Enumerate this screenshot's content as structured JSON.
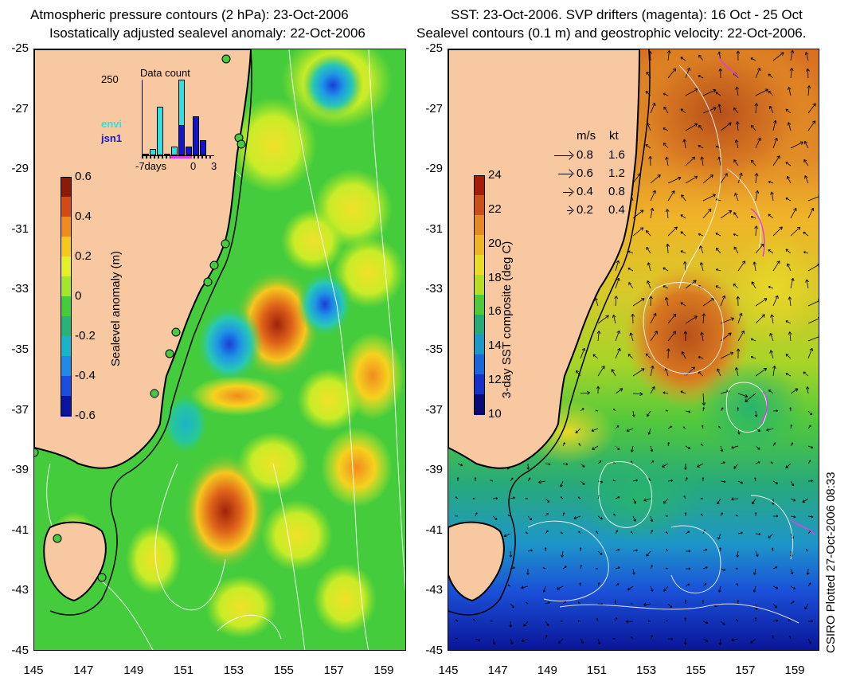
{
  "left_panel": {
    "title_line1": "Atmospheric pressure contours (2 hPa): 23-Oct-2006",
    "title_line2": "Isostatically adjusted sealevel anomaly: 22-Oct-2006",
    "colorbar": {
      "label": "Sealevel anomaly (m)",
      "ticks": [
        "0.6",
        "0.4",
        "0.2",
        "0",
        "-0.2",
        "-0.4",
        "-0.6"
      ],
      "colors": [
        "#8c1a08",
        "#d34a16",
        "#f08c1e",
        "#f5c81e",
        "#e6ee28",
        "#a6e628",
        "#44cc3c",
        "#28b478",
        "#1ab4c8",
        "#1e8ce6",
        "#1a4ee0",
        "#0a14a0"
      ]
    },
    "histogram": {
      "title": "Data count",
      "y_max_label": "250",
      "x_labels": [
        "-7days",
        "0",
        "3"
      ],
      "legend": [
        "envi",
        "jsn1"
      ],
      "legend_colors": [
        "#30e0e0",
        "#1414d0"
      ],
      "envi_counts": [
        5,
        20,
        160,
        5,
        30,
        250,
        10,
        5,
        0,
        0
      ],
      "jsn1_counts": [
        0,
        0,
        0,
        0,
        0,
        100,
        30,
        130,
        50,
        0
      ]
    }
  },
  "right_panel": {
    "title_line1": "SST: 23-Oct-2006. SVP drifters (magenta): 16 Oct - 25 Oct",
    "title_line2": "Sealevel contours (0.1 m) and geostrophic velocity: 22-Oct-2006.",
    "colorbar": {
      "label": "3-day SST composite (deg C)",
      "ticks": [
        "24",
        "22",
        "20",
        "18",
        "16",
        "14",
        "12",
        "10"
      ],
      "colors": [
        "#a01e0a",
        "#c8501a",
        "#e28a28",
        "#f0b428",
        "#e8dc28",
        "#b4dc28",
        "#50c83c",
        "#28aa78",
        "#1e96c8",
        "#1a64dc",
        "#1432c8",
        "#0a0a78"
      ]
    },
    "velocity_legend": {
      "header_ms": "m/s",
      "header_kt": "kt",
      "rows": [
        {
          "ms": "0.8",
          "kt": "1.6",
          "value": 0.8
        },
        {
          "ms": "0.6",
          "kt": "1.2",
          "value": 0.6
        },
        {
          "ms": "0.4",
          "kt": "0.8",
          "value": 0.4
        },
        {
          "ms": "0.2",
          "kt": "0.4",
          "value": 0.2
        }
      ]
    }
  },
  "axes": {
    "lat_ticks": [
      "-25",
      "-27",
      "-29",
      "-31",
      "-33",
      "-35",
      "-37",
      "-39",
      "-41",
      "-43",
      "-45"
    ],
    "lon_ticks": [
      "145",
      "147",
      "149",
      "151",
      "153",
      "155",
      "157",
      "159"
    ]
  },
  "credit": "CSIRO Plotted 27-Oct-2006 08:33",
  "colors": {
    "land": "#f8c8a0",
    "coast": "#000000",
    "contour": "#ffffff",
    "ocean_green": "#44cc3c"
  }
}
